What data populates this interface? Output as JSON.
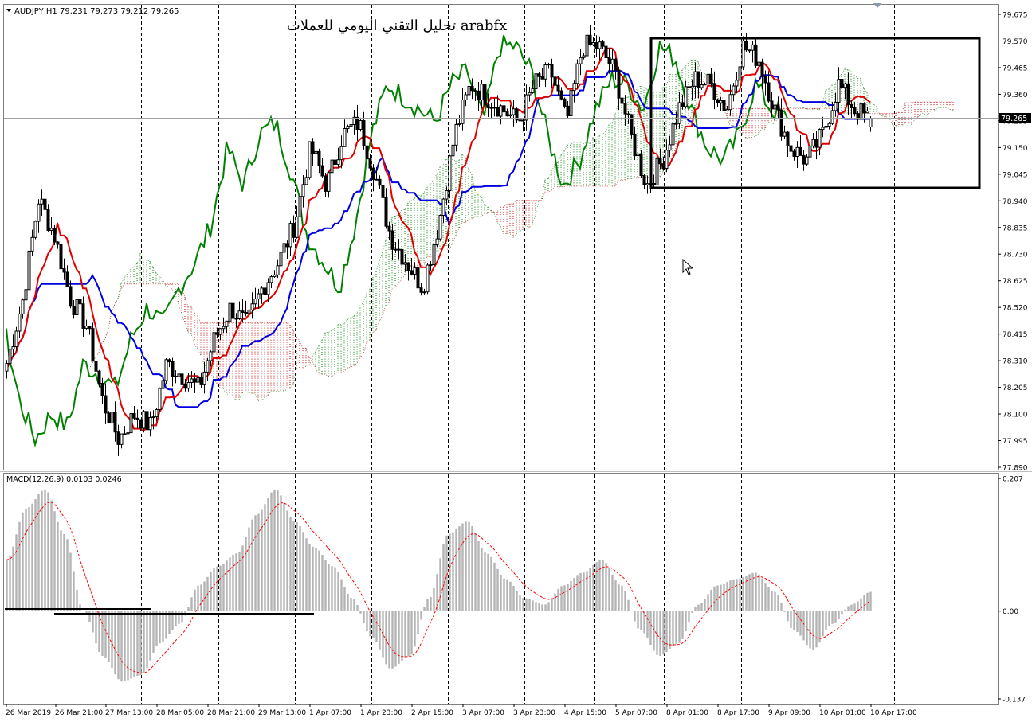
{
  "window": {
    "symbol_header": "AUDJPY,H1  79.231 79.273 79.212 79.265",
    "watermark": "تحليل التقني اليومي للعملات arabfx",
    "indicator_header": "MACD(12,26,9) 0.0103 0.0246",
    "current_price_label": "79.265"
  },
  "colors": {
    "background": "#ffffff",
    "candles": "#000000",
    "tenkan": "#e00000",
    "kijun": "#0000e0",
    "chikou": "#008000",
    "kumo_bull": "#008000",
    "kumo_bear": "#c00000",
    "macd_hist": "#b4b4b4",
    "macd_signal": "#ff0000"
  },
  "chart_data": [
    {
      "type": "candlestick",
      "title": "AUDJPY,H1",
      "ylim": [
        77.89,
        79.675
      ],
      "y_ticks": [
        "79.675",
        "79.570",
        "79.465",
        "79.360",
        "79.255",
        "79.150",
        "79.045",
        "78.940",
        "78.835",
        "78.730",
        "78.625",
        "78.520",
        "78.415",
        "78.310",
        "78.205",
        "78.100",
        "77.995",
        "77.890"
      ],
      "x_ticks": [
        "26 Mar 2019",
        "26 Mar 21:00",
        "27 Mar 13:00",
        "28 Mar 05:00",
        "28 Mar 21:00",
        "29 Mar 13:00",
        "1 Apr 07:00",
        "1 Apr 23:00",
        "2 Apr 15:00",
        "3 Apr 07:00",
        "3 Apr 23:00",
        "4 Apr 15:00",
        "5 Apr 07:00",
        "8 Apr 01:00",
        "8 Apr 17:00",
        "9 Apr 09:00",
        "10 Apr 01:00",
        "10 Apr 17:00"
      ],
      "last_ohlc": {
        "open": 79.231,
        "high": 79.273,
        "low": 79.212,
        "close": 79.265
      },
      "close_approx": [
        78.3,
        78.55,
        78.95,
        78.8,
        78.55,
        78.45,
        78.15,
        78.0,
        78.1,
        78.05,
        78.3,
        78.25,
        78.2,
        78.4,
        78.52,
        78.45,
        78.6,
        78.7,
        78.85,
        79.15,
        79.0,
        79.2,
        79.25,
        79.05,
        78.8,
        78.7,
        78.6,
        78.85,
        79.2,
        79.4,
        79.35,
        79.3,
        79.25,
        79.4,
        79.45,
        79.25,
        79.55,
        79.55,
        79.45,
        79.2,
        79.0,
        79.1,
        79.3,
        79.42,
        79.4,
        79.3,
        79.55,
        79.5,
        79.3,
        79.15,
        79.1,
        79.2,
        79.4,
        79.3,
        79.26
      ],
      "indicators": [
        "Ichimoku tenkan",
        "Ichimoku kijun",
        "Ichimoku chikou",
        "Ichimoku kumo"
      ],
      "annotations": [
        "rectangle 5 Apr – 10 Apr 17:00, 78.98 – 79.58"
      ]
    },
    {
      "type": "bar",
      "title": "MACD(12,26,9)",
      "ylim": [
        -0.137,
        0.207
      ],
      "y_ticks": [
        "0.207",
        "0.00",
        "-0.137"
      ],
      "last_values": {
        "macd": 0.0103,
        "signal": 0.0246
      },
      "histogram_approx": [
        0.08,
        0.16,
        0.19,
        0.12,
        0.0,
        -0.07,
        -0.11,
        -0.1,
        -0.05,
        -0.02,
        0.04,
        0.07,
        0.09,
        0.15,
        0.19,
        0.14,
        0.1,
        0.07,
        0.02,
        -0.04,
        -0.09,
        -0.07,
        0.02,
        0.12,
        0.14,
        0.09,
        0.05,
        0.02,
        0.01,
        0.04,
        0.06,
        0.08,
        0.04,
        -0.03,
        -0.07,
        -0.05,
        0.01,
        0.04,
        0.05,
        0.06,
        0.03,
        -0.03,
        -0.06,
        -0.02,
        0.01,
        0.03
      ]
    }
  ]
}
